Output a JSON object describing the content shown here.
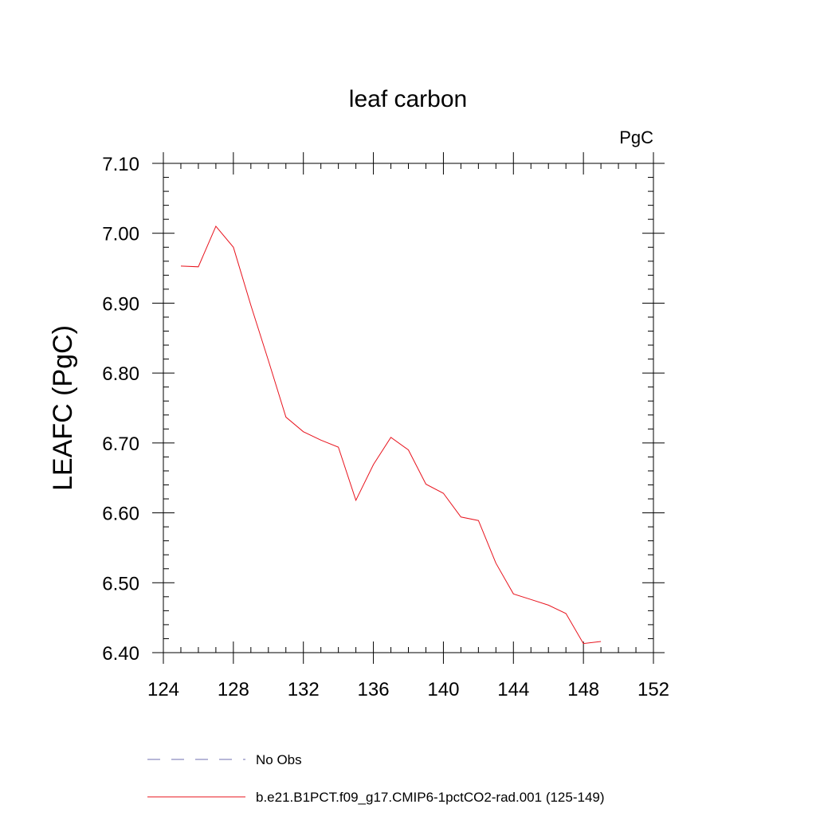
{
  "chart_data": {
    "type": "line",
    "title": "leaf carbon",
    "units": "PgC",
    "ylabel": "LEAFC  (PgC)",
    "xlabel": "",
    "xlim": [
      124,
      152
    ],
    "ylim": [
      6.4,
      7.1
    ],
    "xticks": [
      "124",
      "128",
      "132",
      "136",
      "140",
      "144",
      "148",
      "152"
    ],
    "yticks": [
      "6.40",
      "6.50",
      "6.60",
      "6.70",
      "6.80",
      "6.90",
      "7.00",
      "7.10"
    ],
    "grid": false,
    "legend_position": "bottom",
    "series": [
      {
        "name": "No Obs",
        "color": "#6f6fb0",
        "dash": "dashed",
        "x": [],
        "y": []
      },
      {
        "name": "b.e21.B1PCT.f09_g17.CMIP6-1pctCO2-rad.001 (125-149)",
        "color": "#e8141e",
        "dash": "solid",
        "x": [
          125,
          126,
          127,
          128,
          129,
          130,
          131,
          132,
          133,
          134,
          135,
          136,
          137,
          138,
          139,
          140,
          141,
          142,
          143,
          144,
          145,
          146,
          147,
          148,
          149
        ],
        "y": [
          6.953,
          6.952,
          7.01,
          6.98,
          6.897,
          6.818,
          6.737,
          6.716,
          6.704,
          6.694,
          6.618,
          6.669,
          6.708,
          6.69,
          6.641,
          6.628,
          6.594,
          6.589,
          6.528,
          6.484,
          6.476,
          6.468,
          6.456,
          6.413,
          6.416
        ]
      }
    ]
  }
}
